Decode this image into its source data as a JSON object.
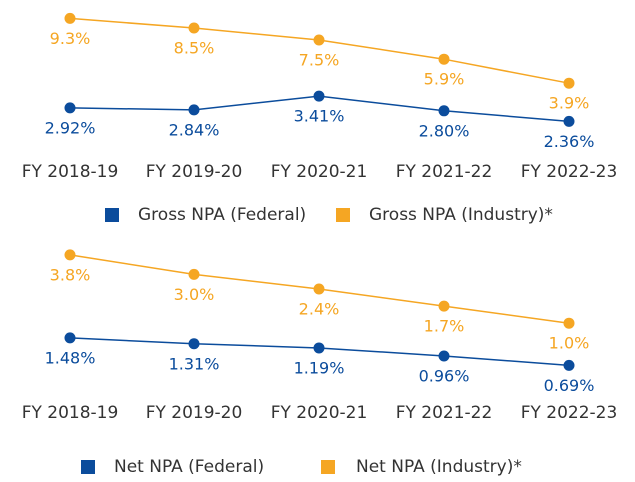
{
  "chart_data": [
    {
      "type": "line",
      "categories": [
        "FY 2018-19",
        "FY 2019-20",
        "FY 2020-21",
        "FY 2021-22",
        "FY 2022-23"
      ],
      "series": [
        {
          "name": "Gross NPA (Industry)*",
          "color": "#f5a623",
          "values": [
            9.3,
            8.5,
            7.5,
            5.9,
            3.9
          ],
          "value_labels": [
            "9.3%",
            "8.5%",
            "7.5%",
            "5.9%",
            "3.9%"
          ]
        },
        {
          "name": "Gross NPA (Federal)",
          "color": "#0b4c9c",
          "axis": "y2",
          "values": [
            2.92,
            2.84,
            3.41,
            2.8,
            2.36
          ],
          "value_labels": [
            "2.92%",
            "2.84%",
            "3.41%",
            "2.80%",
            "2.36%"
          ]
        }
      ],
      "ylim": [
        0,
        10
      ],
      "y2lim": [
        2,
        7
      ]
    },
    {
      "type": "line",
      "categories": [
        "FY 2018-19",
        "FY 2019-20",
        "FY 2020-21",
        "FY 2021-22",
        "FY 2022-23"
      ],
      "series": [
        {
          "name": "Net NPA (Industry)*",
          "color": "#f5a623",
          "values": [
            3.8,
            3.0,
            2.4,
            1.7,
            1.0
          ],
          "value_labels": [
            "3.8%",
            "3.0%",
            "2.4%",
            "1.7%",
            "1.0%"
          ]
        },
        {
          "name": "Net NPA (Federal)",
          "color": "#0b4c9c",
          "axis": "y2",
          "values": [
            1.48,
            1.31,
            1.19,
            0.96,
            0.69
          ],
          "value_labels": [
            "1.48%",
            "1.31%",
            "1.19%",
            "0.96%",
            "0.69%"
          ]
        }
      ],
      "ylim": [
        -1,
        4
      ],
      "y2lim": [
        0.5,
        4
      ]
    }
  ]
}
